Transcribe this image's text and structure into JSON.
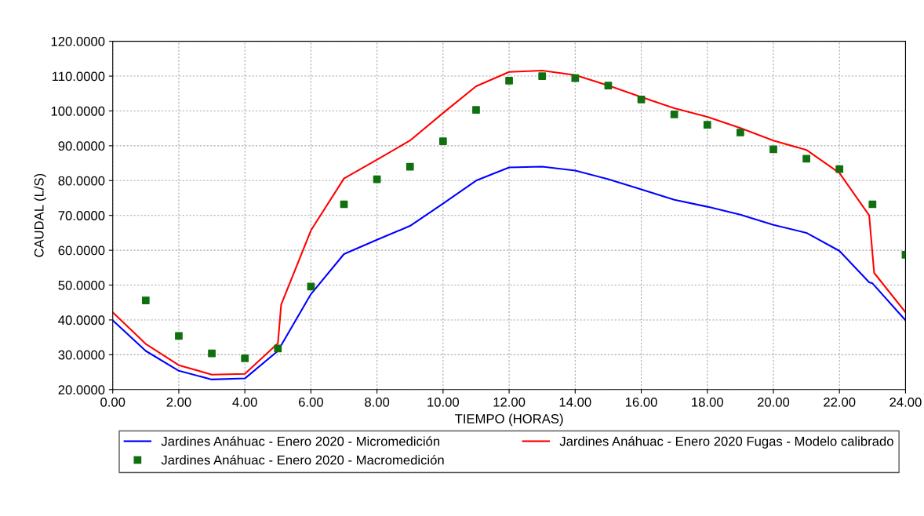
{
  "chart_data": {
    "type": "line",
    "xlabel": "TIEMPO (HORAS)",
    "ylabel": "CAUDAL (L/S)",
    "xlim": [
      0,
      24
    ],
    "ylim": [
      20,
      120
    ],
    "xticks": [
      {
        "value": 0,
        "label": "0.00"
      },
      {
        "value": 2,
        "label": "2.00"
      },
      {
        "value": 4,
        "label": "4.00"
      },
      {
        "value": 6,
        "label": "6.00"
      },
      {
        "value": 8,
        "label": "8.00"
      },
      {
        "value": 10,
        "label": "10.00"
      },
      {
        "value": 12,
        "label": "12.00"
      },
      {
        "value": 14,
        "label": "14.00"
      },
      {
        "value": 16,
        "label": "16.00"
      },
      {
        "value": 18,
        "label": "18.00"
      },
      {
        "value": 20,
        "label": "20.00"
      },
      {
        "value": 22,
        "label": "22.00"
      },
      {
        "value": 24,
        "label": "24.00"
      }
    ],
    "yticks": [
      {
        "value": 20,
        "label": "20.0000"
      },
      {
        "value": 30,
        "label": "30.0000"
      },
      {
        "value": 40,
        "label": "40.0000"
      },
      {
        "value": 50,
        "label": "50.0000"
      },
      {
        "value": 60,
        "label": "60.0000"
      },
      {
        "value": 70,
        "label": "70.0000"
      },
      {
        "value": 80,
        "label": "80.0000"
      },
      {
        "value": 90,
        "label": "90.0000"
      },
      {
        "value": 100,
        "label": "100.0000"
      },
      {
        "value": 110,
        "label": "110.0000"
      },
      {
        "value": 120,
        "label": "120.0000"
      }
    ],
    "grid": true,
    "legend": "bottom",
    "series": [
      {
        "name": "Jardines Anáhuac - Enero 2020 - Micromedición",
        "color": "#0000ff",
        "x": [
          0,
          1,
          2,
          3,
          4,
          5,
          6,
          7,
          8,
          9,
          10,
          11,
          12,
          13,
          14,
          15,
          16,
          17,
          18,
          19,
          20,
          21,
          22,
          22.9,
          23,
          24
        ],
        "values": [
          39.9,
          31.1,
          25.4,
          22.9,
          23.2,
          31.1,
          47.4,
          58.9,
          63,
          67,
          73.4,
          80,
          83.8,
          84,
          82.9,
          80.4,
          77.5,
          74.5,
          72.5,
          70.2,
          67.3,
          65,
          59.8,
          50.8,
          50.5,
          39.9
        ]
      },
      {
        "name": "Jardines Anáhuac - Enero 2020 Fugas - Modelo calibrado",
        "color": "#ff0000",
        "x": [
          0,
          1,
          2,
          3,
          4,
          5,
          5.1,
          6,
          7,
          8,
          9,
          10,
          11,
          12,
          13,
          14,
          15,
          16,
          17,
          18,
          19,
          20,
          21,
          22,
          22.9,
          23.05,
          24
        ],
        "values": [
          42.2,
          33.1,
          27,
          24.3,
          24.5,
          33.3,
          44.4,
          65.7,
          80.6,
          86,
          91.5,
          99.4,
          107.1,
          111.2,
          111.6,
          110.3,
          107.3,
          104,
          100.8,
          98.3,
          95.1,
          91.5,
          88.8,
          82.2,
          70,
          53.5,
          42.2
        ]
      },
      {
        "name": "Jardines Anáhuac - Enero 2020 - Macromedición",
        "type": "scatter",
        "color": "#107010",
        "marker": "square",
        "x": [
          1,
          2,
          3,
          4,
          5,
          6,
          7,
          8,
          9,
          10,
          11,
          12,
          13,
          14,
          15,
          16,
          17,
          18,
          19,
          20,
          21,
          22,
          23,
          24
        ],
        "values": [
          45.6,
          35.4,
          30.4,
          29,
          31.8,
          49.6,
          73.2,
          80.4,
          84,
          91.3,
          100.3,
          108.7,
          110,
          109.4,
          107.3,
          103.3,
          99,
          96,
          93.8,
          89,
          86.3,
          83.3,
          73.2,
          58.7
        ]
      }
    ]
  }
}
